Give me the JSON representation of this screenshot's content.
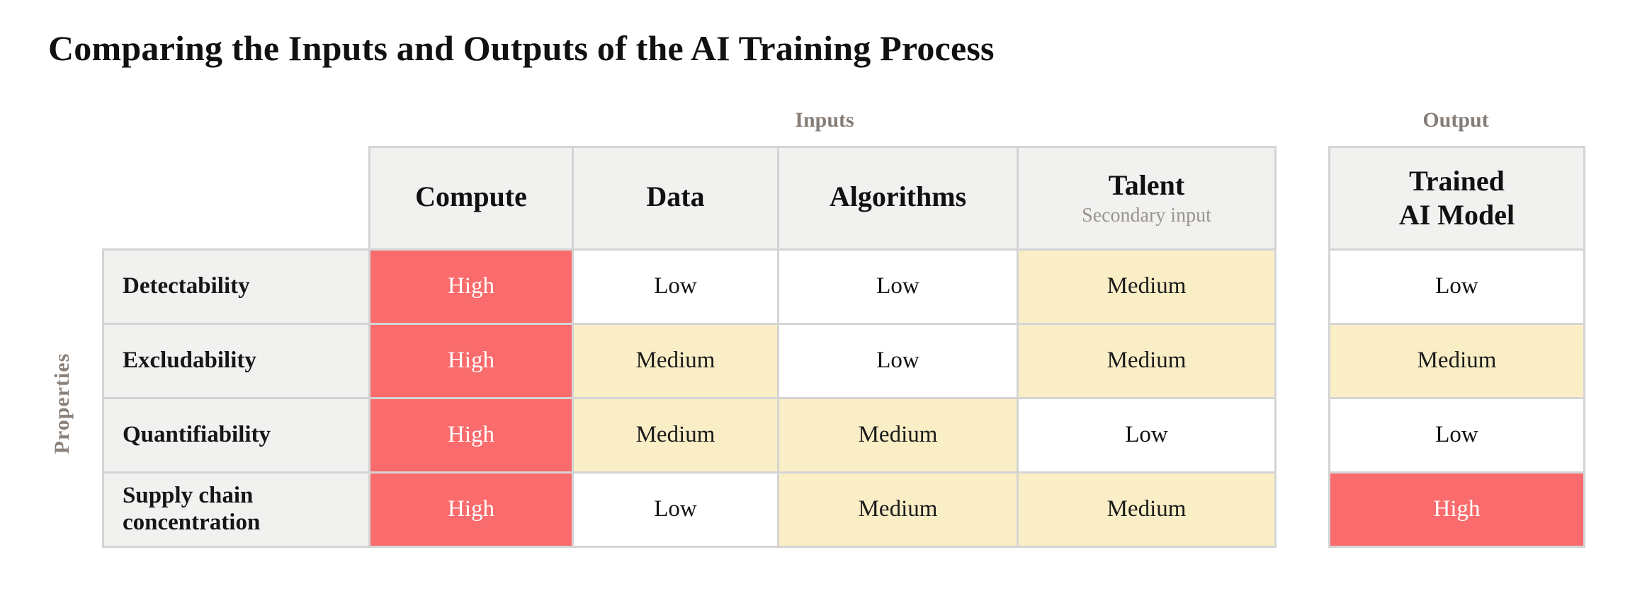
{
  "title": "Comparing the Inputs and Outputs of the AI Training Process",
  "labels": {
    "inputs_group": "Inputs",
    "output_group": "Output",
    "properties_axis": "Properties"
  },
  "chart_data": {
    "type": "table",
    "title": "Comparing the Inputs and Outputs of the AI Training Process",
    "row_axis_label": "Properties",
    "column_groups": {
      "inputs": "Inputs",
      "output": "Output"
    },
    "input_columns": [
      {
        "label": "Compute",
        "subtitle": ""
      },
      {
        "label": "Data",
        "subtitle": ""
      },
      {
        "label": "Algorithms",
        "subtitle": ""
      },
      {
        "label": "Talent",
        "subtitle": "Secondary input"
      }
    ],
    "output_column": {
      "label_line1": "Trained",
      "label_line2": "AI Model"
    },
    "rows": [
      {
        "label": "Detectability",
        "values": [
          "High",
          "Low",
          "Low",
          "Medium"
        ],
        "output_value": "Low"
      },
      {
        "label": "Excludability",
        "values": [
          "High",
          "Medium",
          "Low",
          "Medium"
        ],
        "output_value": "Medium"
      },
      {
        "label": "Quantifiability",
        "values": [
          "High",
          "Medium",
          "Medium",
          "Low"
        ],
        "output_value": "Low"
      },
      {
        "label": "Supply chain concentration",
        "values": [
          "High",
          "Low",
          "Medium",
          "Medium"
        ],
        "output_value": "High"
      }
    ],
    "value_scale": [
      "Low",
      "Medium",
      "High"
    ],
    "value_colors": {
      "High": "#f96b6c",
      "Medium": "#faeec6",
      "Low": "#ffffff"
    },
    "layout_hints": {
      "header_bg": "#f1f1f0",
      "grid_line_color": "#d4d4d4",
      "muted_label_color": "#867d77",
      "high_text_color": "#ffffff",
      "grid": "on"
    }
  }
}
